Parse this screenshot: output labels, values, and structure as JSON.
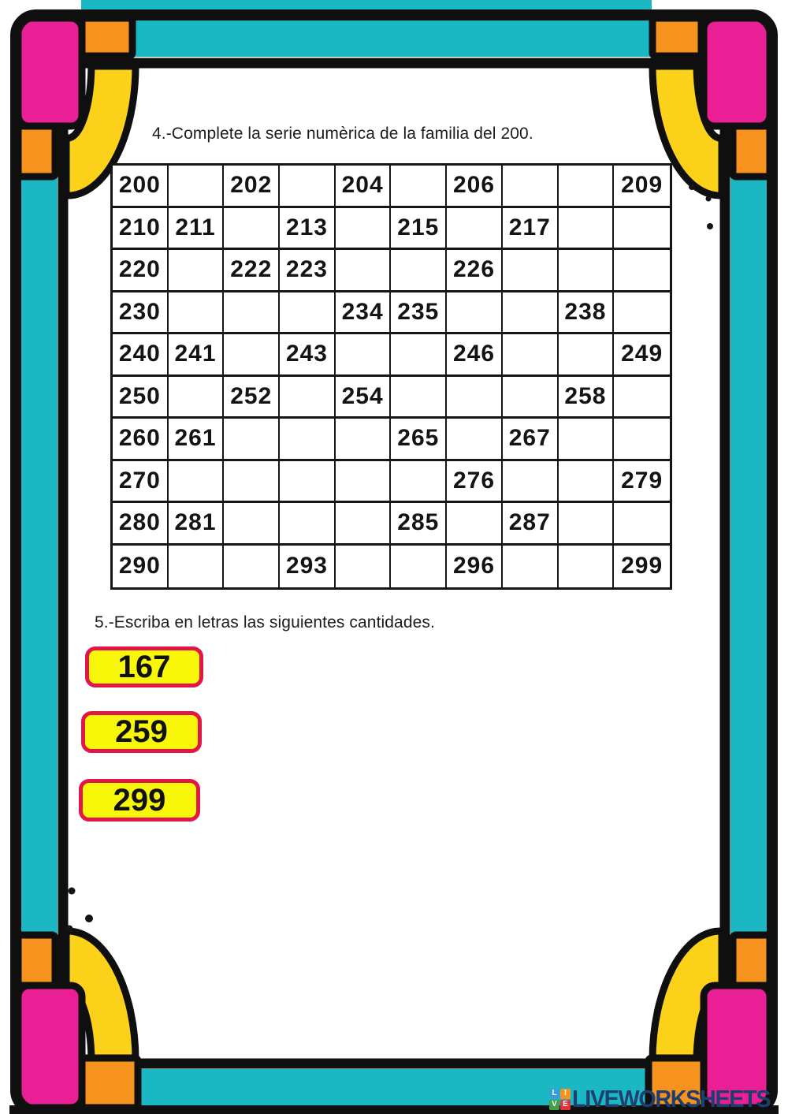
{
  "worksheet": {
    "section4": {
      "title": "4.-Complete la serie numèrica de la familia del 200.",
      "grid": {
        "rows": 10,
        "cols": 10,
        "cells": [
          [
            "200",
            "",
            "202",
            "",
            "204",
            "",
            "206",
            "",
            "",
            "209"
          ],
          [
            "210",
            "211",
            "",
            "213",
            "",
            "215",
            "",
            "217",
            "",
            ""
          ],
          [
            "220",
            "",
            "222",
            "223",
            "",
            "",
            "226",
            "",
            "",
            ""
          ],
          [
            "230",
            "",
            "",
            "",
            "234",
            "235",
            "",
            "",
            "238",
            ""
          ],
          [
            "240",
            "241",
            "",
            "243",
            "",
            "",
            "246",
            "",
            "",
            "249"
          ],
          [
            "250",
            "",
            "252",
            "",
            "254",
            "",
            "",
            "",
            "258",
            ""
          ],
          [
            "260",
            "261",
            "",
            "",
            "",
            "265",
            "",
            "267",
            "",
            ""
          ],
          [
            "270",
            "",
            "",
            "",
            "",
            "",
            "276",
            "",
            "",
            "279"
          ],
          [
            "280",
            "281",
            "",
            "",
            "",
            "285",
            "",
            "287",
            "",
            ""
          ],
          [
            "290",
            "",
            "",
            "293",
            "",
            "",
            "296",
            "",
            "",
            "299"
          ]
        ]
      }
    },
    "section5": {
      "title": "5.-Escriba en letras las siguientes cantidades.",
      "boxes": [
        "167",
        "259",
        "299"
      ]
    },
    "footer": {
      "brand": "LIVEWORKSHEETS",
      "icon_tiles": [
        {
          "letter": "L",
          "color": "#35a0d8"
        },
        {
          "letter": "I",
          "color": "#f6921e"
        },
        {
          "letter": "V",
          "color": "#43a047"
        },
        {
          "letter": "E",
          "color": "#e53238"
        }
      ]
    },
    "colors": {
      "frame_teal": "#1bb8c4",
      "frame_pink": "#ea1f95",
      "frame_orange": "#f6921e",
      "frame_yellow": "#fcd119",
      "box_yellow": "#f8f70a",
      "box_border_red": "#e1174a",
      "brand_navy": "#1d3f6f",
      "outline_black": "#0f0f0f"
    }
  }
}
